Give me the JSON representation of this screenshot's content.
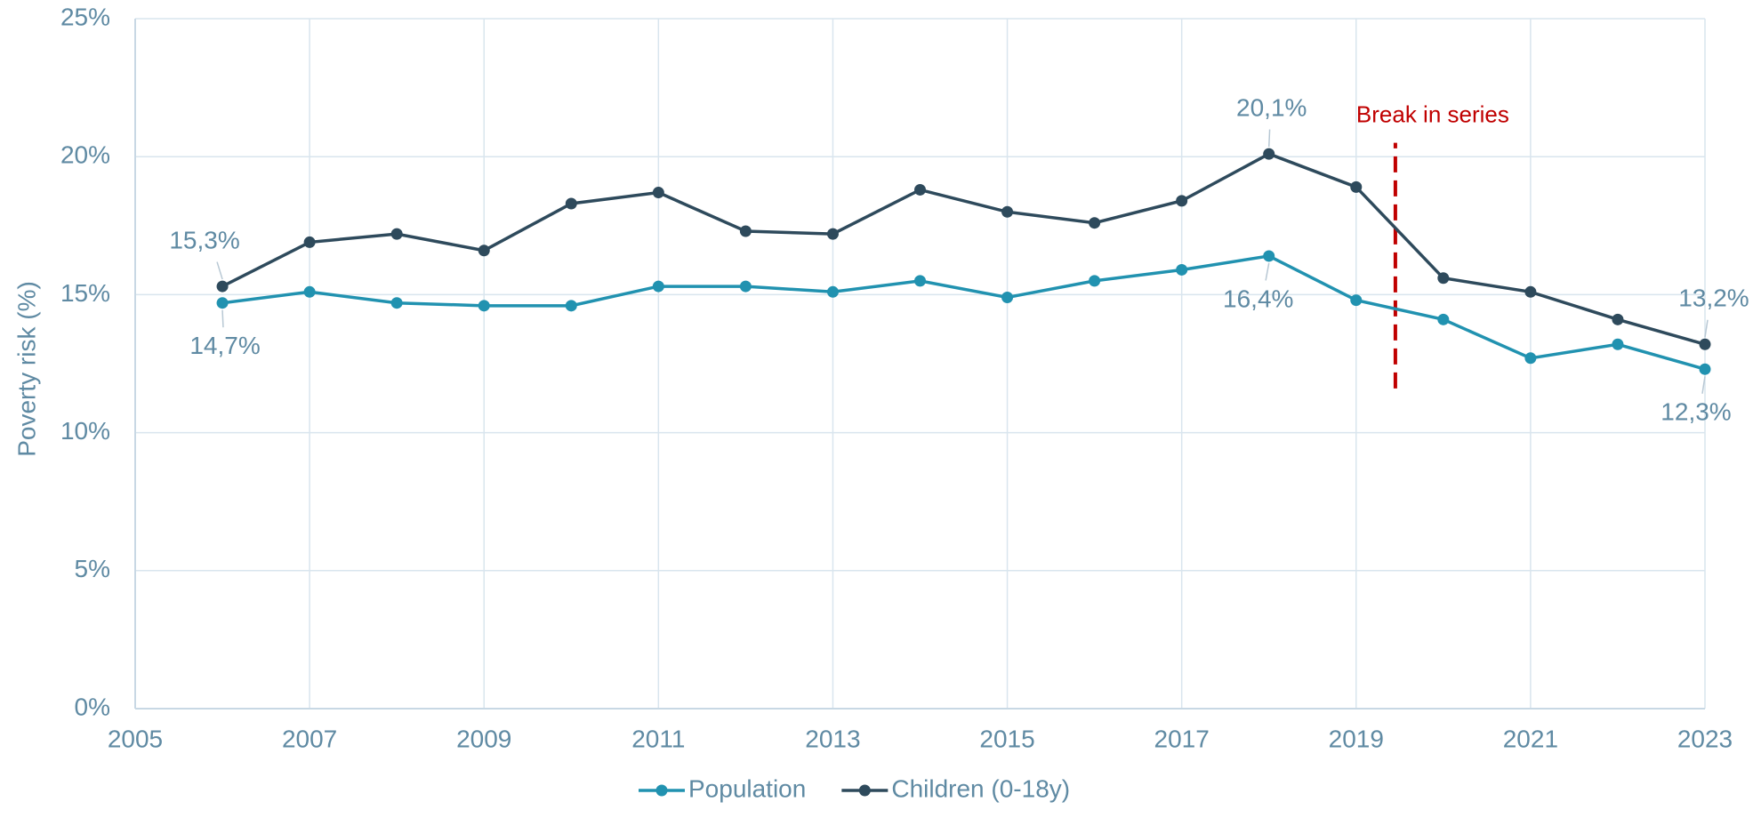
{
  "chart_data": {
    "type": "line",
    "x": [
      2006,
      2007,
      2008,
      2009,
      2010,
      2011,
      2012,
      2013,
      2014,
      2015,
      2016,
      2017,
      2018,
      2019,
      2020,
      2021,
      2022,
      2023
    ],
    "series": [
      {
        "name": "Population",
        "color": "#2192b0",
        "values": [
          14.7,
          15.1,
          14.7,
          14.6,
          14.6,
          15.3,
          15.3,
          15.1,
          15.5,
          14.9,
          15.5,
          15.9,
          16.4,
          14.8,
          14.1,
          12.7,
          13.2,
          12.3
        ],
        "value_labels": [
          "14,7%",
          null,
          null,
          null,
          null,
          null,
          null,
          null,
          null,
          null,
          null,
          null,
          "16,4%",
          null,
          null,
          null,
          null,
          "12,3%"
        ]
      },
      {
        "name": "Children (0-18y)",
        "color": "#2e4a5c",
        "values": [
          15.3,
          16.9,
          17.2,
          16.6,
          18.3,
          18.7,
          17.3,
          17.2,
          18.8,
          18.0,
          17.6,
          18.4,
          20.1,
          18.9,
          15.6,
          15.1,
          14.1,
          13.2
        ],
        "value_labels": [
          "15,3%",
          null,
          null,
          null,
          null,
          null,
          null,
          null,
          null,
          null,
          null,
          null,
          "20,1%",
          null,
          null,
          null,
          null,
          "13,2%"
        ]
      }
    ],
    "ylabel": "Poverty risk (%)",
    "xlim": [
      2005,
      2023
    ],
    "xticks": [
      2005,
      2007,
      2009,
      2011,
      2013,
      2015,
      2017,
      2019,
      2021,
      2023
    ],
    "ylim": [
      0,
      25
    ],
    "yticks": [
      {
        "value": 0,
        "label": "0%"
      },
      {
        "value": 5,
        "label": "5%"
      },
      {
        "value": 10,
        "label": "10%"
      },
      {
        "value": 15,
        "label": "15%"
      },
      {
        "value": 20,
        "label": "20%"
      },
      {
        "value": 25,
        "label": "25%"
      }
    ],
    "grid": true,
    "legend": "bottom",
    "annotations": [
      {
        "text": "Break in series",
        "x": 2019.45,
        "y_from": 11.6,
        "y_to": 20.5,
        "color": "#c00000"
      }
    ]
  }
}
